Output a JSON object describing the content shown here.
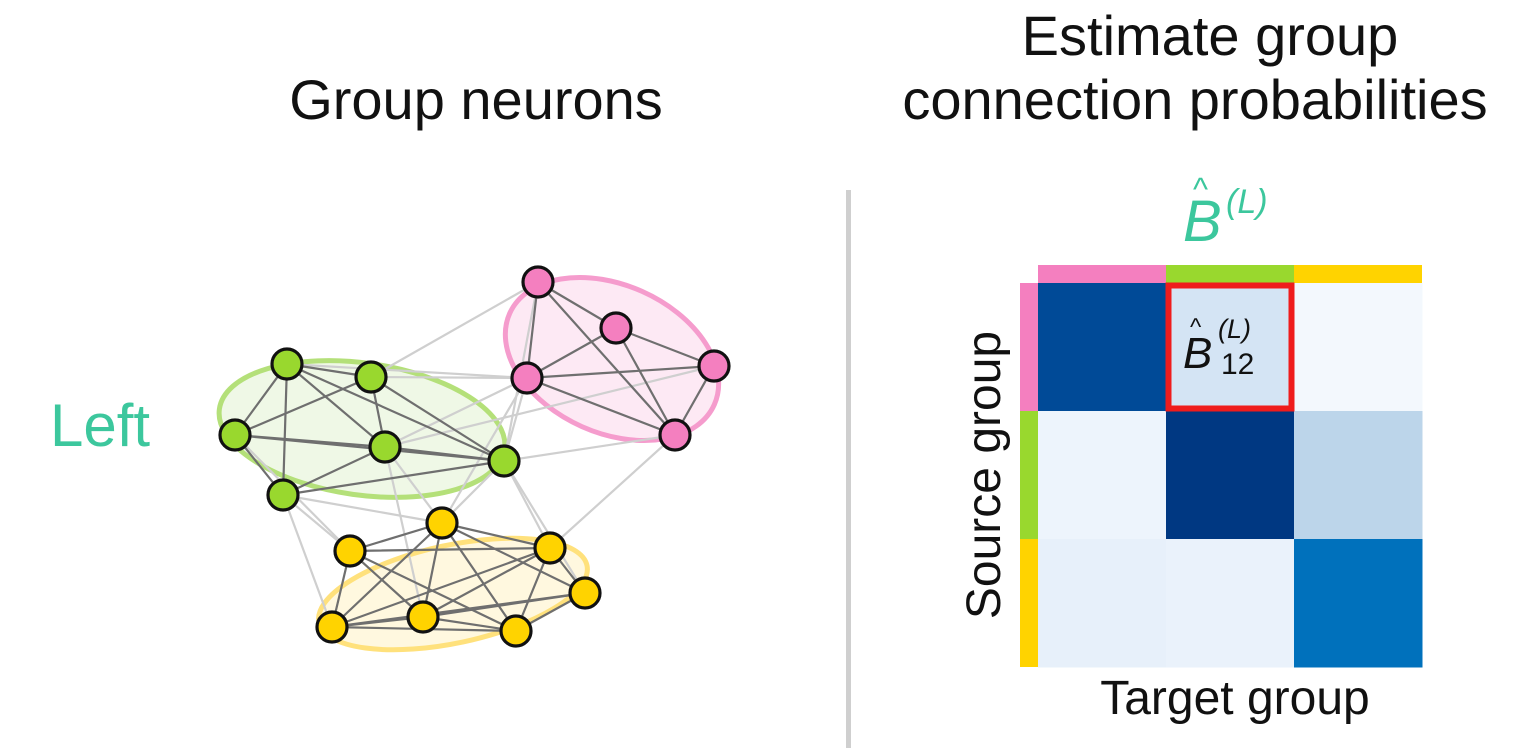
{
  "titles": {
    "left": "Group neurons",
    "right_line1": "Estimate group",
    "right_line2": "connection probabilities"
  },
  "hemisphere_label": "Left",
  "matrix_symbol": {
    "letter": "B",
    "hat": "^",
    "superscript": "(L)"
  },
  "highlight_entry": {
    "letter": "B",
    "hat": "^",
    "superscript": "(L)",
    "subscript": "12"
  },
  "axes": {
    "y_label": "Source group",
    "x_label": "Target group"
  },
  "colors": {
    "group1": "#f47fbf",
    "group2": "#99d82e",
    "group3": "#ffd300",
    "highlight": "#ef1c1c",
    "label": "#3cc79d"
  },
  "heatmap": {
    "groups": [
      "group1",
      "group2",
      "group3"
    ],
    "cells": [
      [
        "#004a97",
        "#d4e4f4",
        "#f3f8fd"
      ],
      [
        "#edf4fc",
        "#003882",
        "#bcd5ea"
      ],
      [
        "#e7f0fa",
        "#eaf2fb",
        "#0071bc"
      ]
    ],
    "highlight_cell": [
      0,
      1
    ]
  }
}
